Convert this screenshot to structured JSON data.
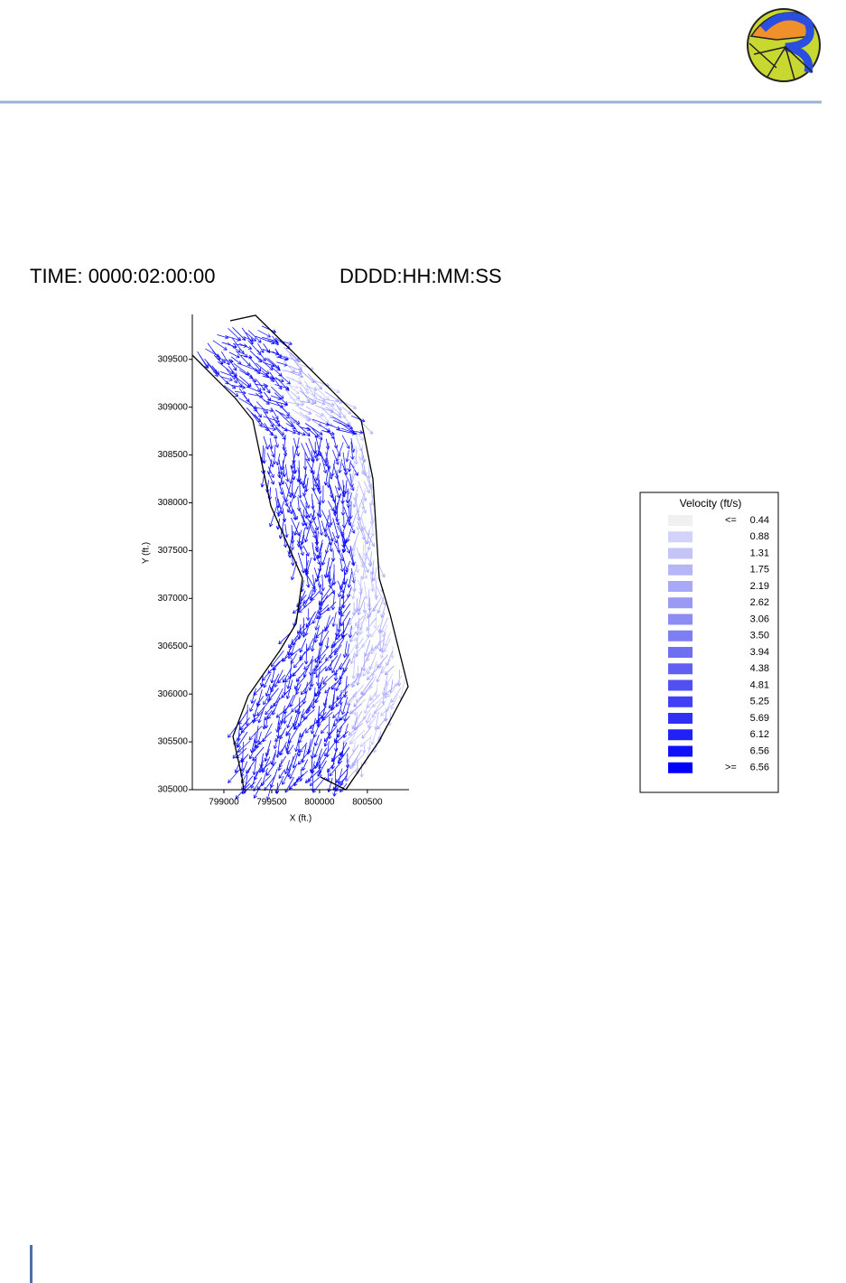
{
  "figure": {
    "time_label": "TIME: 0000:02:00:00",
    "format_label": "DDDD:HH:MM:SS"
  },
  "chart_data": {
    "type": "vector",
    "x_label": "X (ft.)",
    "y_label": "Y (ft.)",
    "xlim": [
      798670,
      800935
    ],
    "ylim": [
      305000,
      309970
    ],
    "xticks": [
      799000,
      799500,
      800000,
      800500
    ],
    "yticks": [
      305000,
      305500,
      306000,
      306500,
      307000,
      307500,
      308000,
      308500,
      309000,
      309500
    ],
    "legend": {
      "title": "Velocity (ft/s)",
      "entries": [
        {
          "prefix": "<=",
          "value": 0.44,
          "label": "0.44",
          "color": "#f0f0f0"
        },
        {
          "value": 0.88,
          "label": "0.88",
          "color": "#d2d2fb"
        },
        {
          "value": 1.31,
          "label": "1.31",
          "color": "#c4c4f9"
        },
        {
          "value": 1.75,
          "label": "1.75",
          "color": "#b6b6f7"
        },
        {
          "value": 2.19,
          "label": "2.19",
          "color": "#a8a8f6"
        },
        {
          "value": 2.62,
          "label": "2.62",
          "color": "#9a9af5"
        },
        {
          "value": 3.06,
          "label": "3.06",
          "color": "#8c8cf4"
        },
        {
          "value": 3.5,
          "label": "3.50",
          "color": "#7e7ef3"
        },
        {
          "value": 3.94,
          "label": "3.94",
          "color": "#6f6ff2"
        },
        {
          "value": 4.38,
          "label": "4.38",
          "color": "#6060f2"
        },
        {
          "value": 4.81,
          "label": "4.81",
          "color": "#5050f3"
        },
        {
          "value": 5.25,
          "label": "5.25",
          "color": "#4040f4"
        },
        {
          "value": 5.69,
          "label": "5.69",
          "color": "#3030f5"
        },
        {
          "value": 6.12,
          "label": "6.12",
          "color": "#2020f7"
        },
        {
          "value": 6.56,
          "label": "6.56",
          "color": "#1010f9"
        },
        {
          "prefix": ">=",
          "value": 6.56,
          "label": "6.56",
          "color": "#0000fb"
        }
      ]
    }
  }
}
